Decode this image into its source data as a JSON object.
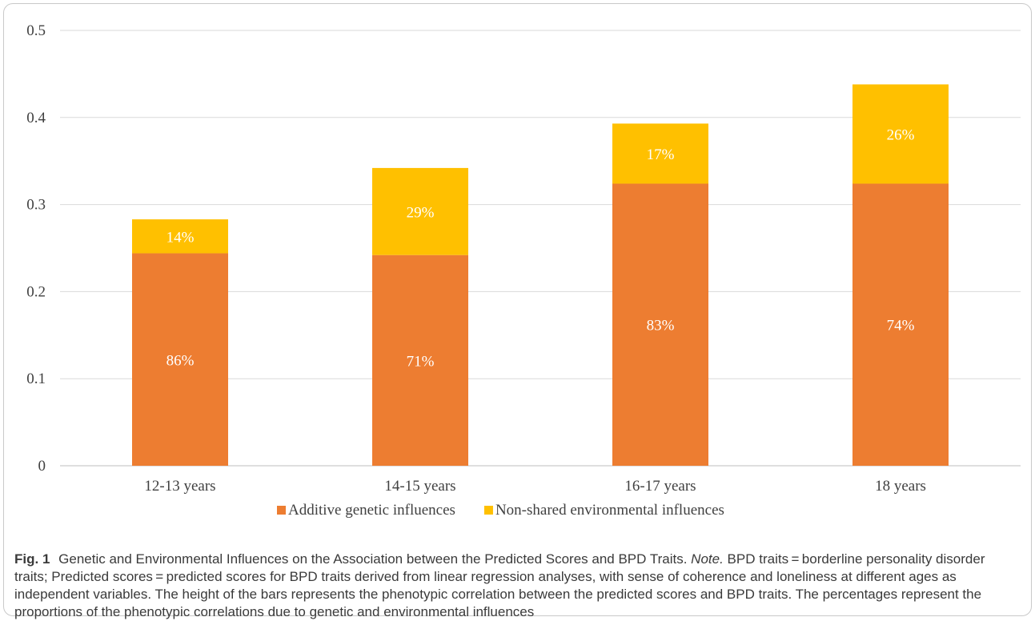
{
  "chart_data": {
    "type": "bar",
    "stacked": true,
    "categories": [
      "12-13 years",
      "14-15 years",
      "16-17 years",
      "18 years"
    ],
    "series": [
      {
        "name": "Additive genetic influences",
        "color": "#ED7D31",
        "values": [
          0.244,
          0.242,
          0.324,
          0.324
        ],
        "labels": [
          "86%",
          "71%",
          "83%",
          "74%"
        ]
      },
      {
        "name": "Non-shared environmental influences",
        "color": "#FFC000",
        "values": [
          0.039,
          0.1,
          0.069,
          0.114
        ],
        "labels": [
          "14%",
          "29%",
          "17%",
          "26%"
        ]
      }
    ],
    "ylim": [
      0,
      0.5
    ],
    "yticks": [
      "0",
      "0.1",
      "0.2",
      "0.3",
      "0.4",
      "0.5"
    ],
    "grid": true,
    "legend": "bottom"
  },
  "caption": {
    "fig_label": "Fig. 1",
    "title": "Genetic and Environmental Influences on the Association between the Predicted Scores and BPD Traits.",
    "note_label": "Note.",
    "note_text": "BPD traits = borderline personality disorder traits; Predicted scores = predicted scores for BPD traits derived from linear regression analyses, with sense of coherence and loneliness at different ages as independent variables. The height of the bars represents the phenotypic correlation between the predicted scores and BPD traits. The percentages represent the proportions of the phenotypic correlations due to genetic and environmental influences"
  }
}
